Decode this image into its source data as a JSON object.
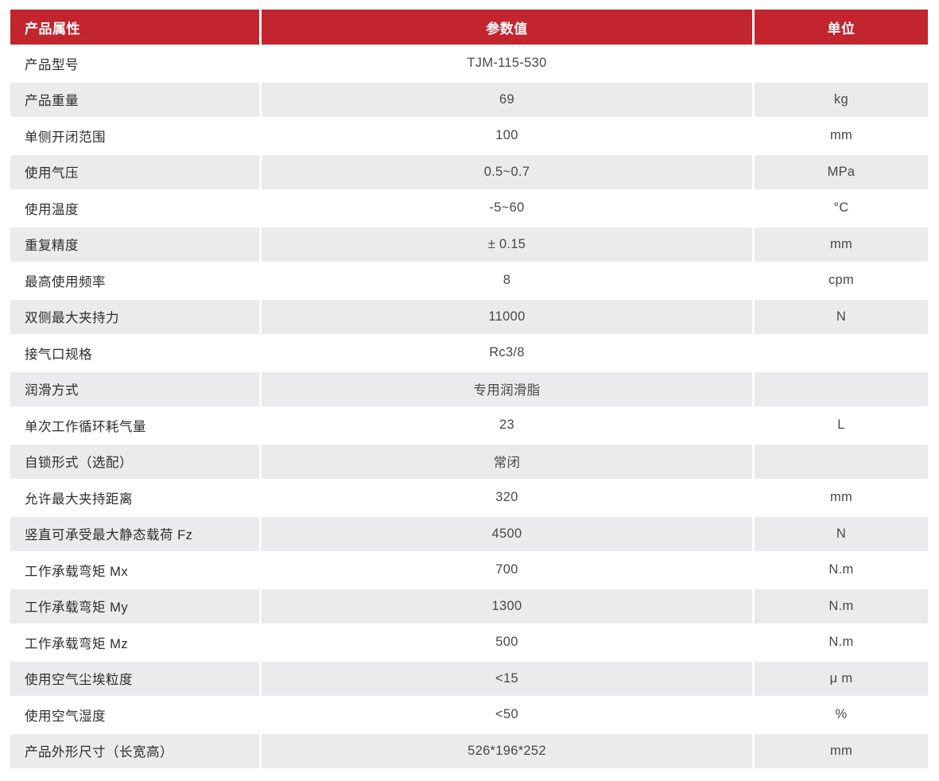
{
  "table": {
    "headers": [
      "产品属性",
      "参数值",
      "单位"
    ],
    "header_bg_color": "#c2252e",
    "alt_row_bg_color": "#ebebed",
    "rows": [
      {
        "attr": "产品型号",
        "value": "TJM-115-530",
        "unit": ""
      },
      {
        "attr": "产品重量",
        "value": "69",
        "unit": "kg"
      },
      {
        "attr": "单侧开闭范围",
        "value": "100",
        "unit": "mm"
      },
      {
        "attr": "使用气压",
        "value": "0.5~0.7",
        "unit": "MPa"
      },
      {
        "attr": "使用温度",
        "value": "-5~60",
        "unit": "°C"
      },
      {
        "attr": "重复精度",
        "value": "± 0.15",
        "unit": "mm"
      },
      {
        "attr": "最高使用频率",
        "value": "8",
        "unit": "cpm"
      },
      {
        "attr": "双侧最大夹持力",
        "value": "11000",
        "unit": "N"
      },
      {
        "attr": "接气口规格",
        "value": "Rc3/8",
        "unit": ""
      },
      {
        "attr": "润滑方式",
        "value": "专用润滑脂",
        "unit": ""
      },
      {
        "attr": "单次工作循环耗气量",
        "value": "23",
        "unit": "L"
      },
      {
        "attr": "自锁形式（选配）",
        "value": "常闭",
        "unit": ""
      },
      {
        "attr": "允许最大夹持距离",
        "value": "320",
        "unit": "mm"
      },
      {
        "attr": "竖直可承受最大静态载荷 Fz",
        "value": "4500",
        "unit": "N"
      },
      {
        "attr": "工作承载弯矩 Mx",
        "value": "700",
        "unit": "N.m"
      },
      {
        "attr": "工作承载弯矩 My",
        "value": "1300",
        "unit": "N.m"
      },
      {
        "attr": "工作承载弯矩 Mz",
        "value": "500",
        "unit": "N.m"
      },
      {
        "attr": "使用空气尘埃粒度",
        "value": "<15",
        "unit": "μ m"
      },
      {
        "attr": "使用空气湿度",
        "value": "<50",
        "unit": "%"
      },
      {
        "attr": "产品外形尺寸（长宽高）",
        "value": "526*196*252",
        "unit": "mm"
      }
    ]
  }
}
